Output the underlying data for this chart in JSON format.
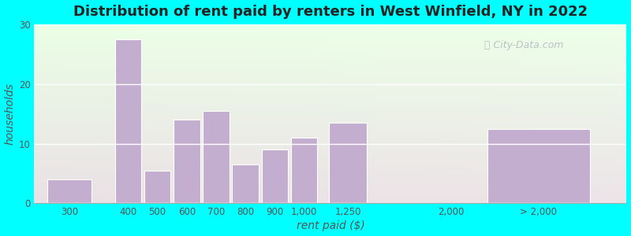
{
  "title": "Distribution of rent paid by renters in West Winfield, NY in 2022",
  "xlabel": "rent paid ($)",
  "ylabel": "households",
  "bar_color": "#c4aed0",
  "bar_edge_color": "#ffffff",
  "outer_bg": "#00ffff",
  "bg_color": "#e8f5e2",
  "categories": [
    "300",
    "400",
    "500",
    "600",
    "700",
    "800",
    "900",
    "1,000",
    "1,250",
    "2,000",
    "> 2,000"
  ],
  "values": [
    4,
    27.5,
    5.5,
    14,
    15.5,
    6.5,
    9,
    11,
    13.5,
    0,
    12.5
  ],
  "ylim": [
    0,
    30
  ],
  "yticks": [
    0,
    10,
    20,
    30
  ],
  "title_fontsize": 13,
  "axis_label_fontsize": 10,
  "tick_fontsize": 8.5,
  "bar_positions": [
    1,
    3,
    4,
    5,
    6,
    7,
    8,
    9,
    10.5,
    14,
    17
  ],
  "bar_widths": [
    1.5,
    0.9,
    0.9,
    0.9,
    0.9,
    0.9,
    0.9,
    0.9,
    1.3,
    0.9,
    3.5
  ],
  "xlim": [
    -0.2,
    20
  ],
  "watermark": "City-Data.com"
}
